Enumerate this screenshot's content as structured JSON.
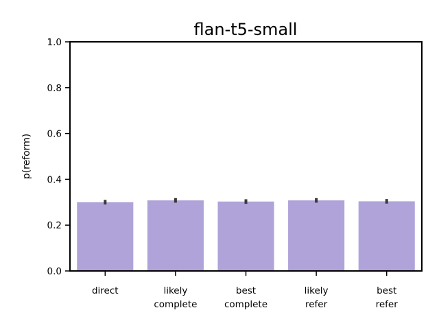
{
  "chart_data": {
    "type": "bar",
    "title": "flan-t5-small",
    "xlabel": "",
    "ylabel": "p(reform)",
    "ylim": [
      0,
      1.0
    ],
    "yticks": [
      "0.0",
      "0.2",
      "0.4",
      "0.6",
      "0.8",
      "1.0"
    ],
    "categories": [
      [
        "direct"
      ],
      [
        "likely",
        "complete"
      ],
      [
        "best",
        "complete"
      ],
      [
        "likely",
        "refer"
      ],
      [
        "best",
        "refer"
      ]
    ],
    "values": [
      0.3,
      0.308,
      0.303,
      0.308,
      0.304
    ],
    "error_low": [
      0.29,
      0.298,
      0.293,
      0.298,
      0.294
    ],
    "error_high": [
      0.31,
      0.318,
      0.313,
      0.318,
      0.314
    ],
    "bar_color": "#b0a3d9",
    "error_color": "#3a3a3a",
    "grid": false,
    "legend": "none"
  }
}
